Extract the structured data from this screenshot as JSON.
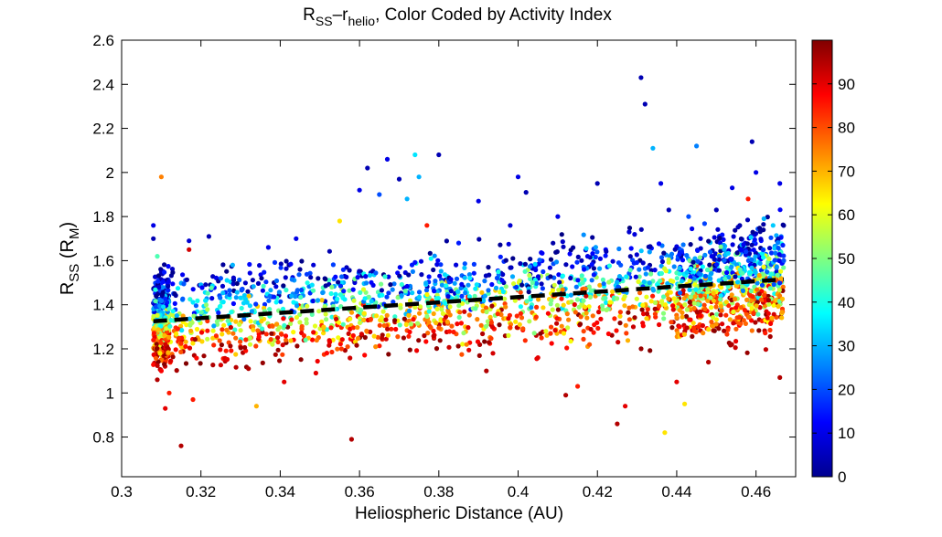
{
  "chart_data": {
    "type": "scatter",
    "title": {
      "main": "R",
      "main_sub": "SS",
      "dash": "–r",
      "helio_sub": "helio",
      "rest": ", Color Coded by Activity Index"
    },
    "xlabel": "Heliospheric Distance (AU)",
    "ylabel": {
      "r": "R",
      "r_sub": "SS",
      "open": " (R",
      "m_sub": "M",
      "close": ")"
    },
    "xlim": [
      0.3,
      0.47
    ],
    "ylim": [
      0.62,
      2.6
    ],
    "xticks": [
      0.3,
      0.32,
      0.34,
      0.36,
      0.38,
      0.4,
      0.42,
      0.44,
      0.46
    ],
    "xtick_labels": [
      "0.3",
      "0.32",
      "0.34",
      "0.36",
      "0.38",
      "0.4",
      "0.42",
      "0.44",
      "0.46"
    ],
    "yticks": [
      0.8,
      1.0,
      1.2,
      1.4,
      1.6,
      1.8,
      2.0,
      2.2,
      2.4,
      2.6
    ],
    "ytick_labels": [
      "0.8",
      "1",
      "1.2",
      "1.4",
      "1.6",
      "1.8",
      "2",
      "2.2",
      "2.4",
      "2.6"
    ],
    "colorbar": {
      "colormap": "jet",
      "range": [
        0,
        100
      ],
      "ticks": [
        0,
        10,
        20,
        30,
        40,
        50,
        60,
        70,
        80,
        90
      ],
      "tick_labels": [
        "0",
        "10",
        "20",
        "30",
        "40",
        "50",
        "60",
        "70",
        "80",
        "90"
      ]
    },
    "fit_line": {
      "style": "dashed",
      "color": "#000000",
      "x": [
        0.308,
        0.467
      ],
      "y": [
        1.325,
        1.515
      ]
    },
    "series": [
      {
        "x_range": [
          0.308,
          0.467
        ],
        "points": [
          [
            0.308,
            1.76,
            10
          ],
          [
            0.308,
            1.7,
            5
          ],
          [
            0.309,
            1.62,
            45
          ],
          [
            0.31,
            1.98,
            75
          ],
          [
            0.309,
            1.06,
            95
          ],
          [
            0.31,
            1.1,
            88
          ],
          [
            0.311,
            0.93,
            90
          ],
          [
            0.312,
            1.0,
            85
          ],
          [
            0.315,
            0.76,
            95
          ],
          [
            0.318,
            0.97,
            85
          ],
          [
            0.317,
            1.69,
            8
          ],
          [
            0.317,
            1.65,
            92
          ],
          [
            0.322,
            1.71,
            5
          ],
          [
            0.325,
            1.52,
            20
          ],
          [
            0.328,
            1.58,
            30
          ],
          [
            0.332,
            1.11,
            95
          ],
          [
            0.334,
            0.94,
            70
          ],
          [
            0.337,
            1.66,
            10
          ],
          [
            0.341,
            1.05,
            90
          ],
          [
            0.344,
            1.7,
            10
          ],
          [
            0.346,
            1.26,
            85
          ],
          [
            0.349,
            1.09,
            90
          ],
          [
            0.353,
            1.48,
            50
          ],
          [
            0.355,
            1.78,
            65
          ],
          [
            0.357,
            1.21,
            80
          ],
          [
            0.358,
            0.79,
            95
          ],
          [
            0.36,
            1.92,
            10
          ],
          [
            0.362,
            2.02,
            5
          ],
          [
            0.365,
            1.9,
            20
          ],
          [
            0.367,
            2.06,
            10
          ],
          [
            0.37,
            1.97,
            5
          ],
          [
            0.372,
            1.88,
            30
          ],
          [
            0.374,
            2.08,
            35
          ],
          [
            0.375,
            1.98,
            30
          ],
          [
            0.377,
            1.76,
            85
          ],
          [
            0.38,
            2.08,
            5
          ],
          [
            0.385,
            1.68,
            15
          ],
          [
            0.387,
            1.22,
            75
          ],
          [
            0.39,
            1.87,
            10
          ],
          [
            0.392,
            1.1,
            95
          ],
          [
            0.395,
            1.55,
            40
          ],
          [
            0.398,
            1.76,
            8
          ],
          [
            0.4,
            1.98,
            10
          ],
          [
            0.402,
            1.91,
            5
          ],
          [
            0.405,
            1.16,
            90
          ],
          [
            0.407,
            1.28,
            60
          ],
          [
            0.41,
            1.8,
            10
          ],
          [
            0.412,
            0.99,
            95
          ],
          [
            0.415,
            1.03,
            85
          ],
          [
            0.418,
            1.22,
            80
          ],
          [
            0.42,
            1.95,
            5
          ],
          [
            0.422,
            1.43,
            45
          ],
          [
            0.425,
            0.86,
            95
          ],
          [
            0.427,
            0.94,
            90
          ],
          [
            0.428,
            1.73,
            8
          ],
          [
            0.431,
            2.43,
            5
          ],
          [
            0.432,
            2.31,
            5
          ],
          [
            0.434,
            2.11,
            30
          ],
          [
            0.436,
            1.95,
            10
          ],
          [
            0.437,
            0.82,
            65
          ],
          [
            0.438,
            1.83,
            5
          ],
          [
            0.44,
            1.05,
            90
          ],
          [
            0.442,
            0.95,
            65
          ],
          [
            0.443,
            1.8,
            20
          ],
          [
            0.445,
            2.12,
            25
          ],
          [
            0.446,
            1.7,
            8
          ],
          [
            0.448,
            1.14,
            95
          ],
          [
            0.45,
            1.83,
            5
          ],
          [
            0.452,
            1.65,
            30
          ],
          [
            0.454,
            1.93,
            10
          ],
          [
            0.456,
            1.56,
            45
          ],
          [
            0.458,
            1.88,
            85
          ],
          [
            0.459,
            2.14,
            5
          ],
          [
            0.46,
            2.0,
            10
          ],
          [
            0.462,
            1.79,
            30
          ],
          [
            0.464,
            1.34,
            70
          ],
          [
            0.466,
            1.95,
            10
          ],
          [
            0.466,
            1.07,
            95
          ],
          [
            0.467,
            1.6,
            20
          ]
        ]
      }
    ]
  }
}
